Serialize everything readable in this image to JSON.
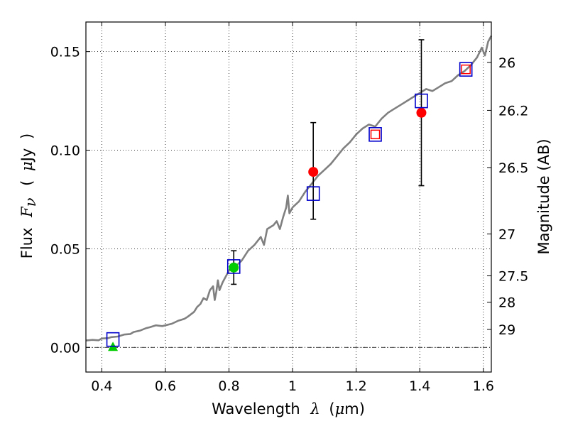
{
  "chart_data": {
    "type": "scatter",
    "xlabel": {
      "prefix": "Wavelength",
      "symbol": "λ",
      "units_open": "(",
      "units_mu": "μ",
      "units_rest": "m)"
    },
    "ylabel": {
      "prefix": "Flux",
      "symbol": "F",
      "subscript": "ν",
      "units_open": "(",
      "units_mu": "μ",
      "units_rest": "Jy",
      "units_close": ")"
    },
    "y2label": "Magnitude (AB)",
    "xlim": [
      0.35,
      1.625
    ],
    "ylim": [
      -0.0125,
      0.165
    ],
    "grid": true,
    "x_ticks": [
      {
        "value": 0.4,
        "label": "0.4"
      },
      {
        "value": 0.6,
        "label": "0.6"
      },
      {
        "value": 0.8,
        "label": "0.8"
      },
      {
        "value": 1.0,
        "label": "1"
      },
      {
        "value": 1.2,
        "label": "1.2"
      },
      {
        "value": 1.4,
        "label": "1.4"
      },
      {
        "value": 1.6,
        "label": "1.6"
      }
    ],
    "y_ticks": [
      {
        "value": 0.0,
        "label": "0.00"
      },
      {
        "value": 0.05,
        "label": "0.05"
      },
      {
        "value": 0.1,
        "label": "0.10"
      },
      {
        "value": 0.15,
        "label": "0.15"
      }
    ],
    "mag_ticks": [
      {
        "flux": 0.1445,
        "label": "26"
      },
      {
        "flux": 0.1202,
        "label": "26.2"
      },
      {
        "flux": 0.0912,
        "label": "26.5"
      },
      {
        "flux": 0.0575,
        "label": "27"
      },
      {
        "flux": 0.0363,
        "label": "27.5"
      },
      {
        "flux": 0.0229,
        "label": "28"
      },
      {
        "flux": 0.0091,
        "label": "29"
      }
    ],
    "zero_line": 0.0,
    "spectrum": {
      "color": "#808080",
      "points": [
        [
          0.35,
          0.0035
        ],
        [
          0.37,
          0.0038
        ],
        [
          0.39,
          0.0036
        ],
        [
          0.4,
          0.0045
        ],
        [
          0.42,
          0.0047
        ],
        [
          0.43,
          0.0052
        ],
        [
          0.45,
          0.0055
        ],
        [
          0.47,
          0.0065
        ],
        [
          0.49,
          0.0068
        ],
        [
          0.5,
          0.0078
        ],
        [
          0.52,
          0.0085
        ],
        [
          0.54,
          0.0098
        ],
        [
          0.55,
          0.0102
        ],
        [
          0.57,
          0.0112
        ],
        [
          0.59,
          0.0108
        ],
        [
          0.6,
          0.0112
        ],
        [
          0.62,
          0.012
        ],
        [
          0.64,
          0.0135
        ],
        [
          0.66,
          0.0145
        ],
        [
          0.67,
          0.0155
        ],
        [
          0.69,
          0.018
        ],
        [
          0.7,
          0.0205
        ],
        [
          0.71,
          0.022
        ],
        [
          0.72,
          0.025
        ],
        [
          0.73,
          0.024
        ],
        [
          0.74,
          0.029
        ],
        [
          0.75,
          0.031
        ],
        [
          0.755,
          0.024
        ],
        [
          0.76,
          0.028
        ],
        [
          0.765,
          0.034
        ],
        [
          0.77,
          0.029
        ],
        [
          0.78,
          0.033
        ],
        [
          0.79,
          0.036
        ],
        [
          0.8,
          0.039
        ],
        [
          0.82,
          0.041
        ],
        [
          0.84,
          0.044
        ],
        [
          0.86,
          0.049
        ],
        [
          0.88,
          0.052
        ],
        [
          0.9,
          0.056
        ],
        [
          0.91,
          0.052
        ],
        [
          0.92,
          0.06
        ],
        [
          0.94,
          0.062
        ],
        [
          0.95,
          0.064
        ],
        [
          0.96,
          0.06
        ],
        [
          0.97,
          0.066
        ],
        [
          0.98,
          0.071
        ],
        [
          0.985,
          0.077
        ],
        [
          0.99,
          0.068
        ],
        [
          1.0,
          0.071
        ],
        [
          1.02,
          0.074
        ],
        [
          1.04,
          0.079
        ],
        [
          1.06,
          0.083
        ],
        [
          1.08,
          0.087
        ],
        [
          1.1,
          0.09
        ],
        [
          1.12,
          0.093
        ],
        [
          1.14,
          0.097
        ],
        [
          1.16,
          0.101
        ],
        [
          1.18,
          0.104
        ],
        [
          1.2,
          0.108
        ],
        [
          1.22,
          0.111
        ],
        [
          1.24,
          0.113
        ],
        [
          1.26,
          0.112
        ],
        [
          1.28,
          0.116
        ],
        [
          1.3,
          0.119
        ],
        [
          1.32,
          0.121
        ],
        [
          1.34,
          0.123
        ],
        [
          1.36,
          0.125
        ],
        [
          1.38,
          0.127
        ],
        [
          1.4,
          0.129
        ],
        [
          1.42,
          0.131
        ],
        [
          1.44,
          0.13
        ],
        [
          1.46,
          0.132
        ],
        [
          1.48,
          0.134
        ],
        [
          1.5,
          0.135
        ],
        [
          1.52,
          0.138
        ],
        [
          1.54,
          0.14
        ],
        [
          1.56,
          0.143
        ],
        [
          1.58,
          0.147
        ],
        [
          1.595,
          0.152
        ],
        [
          1.605,
          0.148
        ],
        [
          1.615,
          0.155
        ],
        [
          1.625,
          0.158
        ]
      ]
    },
    "model_points": {
      "color": "#0000cc",
      "marker": "square-open",
      "points": [
        [
          0.435,
          0.004
        ],
        [
          0.815,
          0.041
        ],
        [
          1.065,
          0.078
        ],
        [
          1.26,
          0.108
        ],
        [
          1.405,
          0.125
        ],
        [
          1.545,
          0.141
        ]
      ]
    },
    "observed_points": [
      {
        "x": 0.435,
        "y": 0.0,
        "color": "#00cc00",
        "marker": "triangle",
        "err_low": null,
        "err_high": null
      },
      {
        "x": 0.815,
        "y": 0.0405,
        "color": "#00cc00",
        "marker": "circle",
        "err_low": 0.032,
        "err_high": 0.049
      },
      {
        "x": 1.065,
        "y": 0.089,
        "color": "#ff0000",
        "marker": "circle",
        "err_low": 0.065,
        "err_high": 0.114
      },
      {
        "x": 1.26,
        "y": 0.108,
        "color": "#ff0000",
        "marker": "square-open",
        "err_low": null,
        "err_high": null
      },
      {
        "x": 1.405,
        "y": 0.119,
        "color": "#ff0000",
        "marker": "circle",
        "err_low": 0.082,
        "err_high": 0.156
      },
      {
        "x": 1.545,
        "y": 0.141,
        "color": "#ff0000",
        "marker": "square-open",
        "err_low": null,
        "err_high": null
      }
    ]
  }
}
